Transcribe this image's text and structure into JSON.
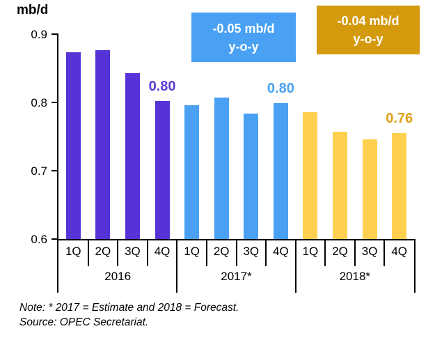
{
  "title": "mb/d",
  "annotations": [
    {
      "line1": "-0.05  mb/d",
      "line2": "y-o-y",
      "bg": "#4aa1f3"
    },
    {
      "line1": "-0.04 mb/d",
      "line2": "y-o-y",
      "bg": "#d49a0e"
    }
  ],
  "note": "Note: * 2017 = Estimate and 2018 = Forecast.",
  "source": "Source: OPEC Secretariat.",
  "chart_data": {
    "type": "bar",
    "title": "mb/d",
    "ylabel": "mb/d",
    "ylim": [
      0.6,
      0.9
    ],
    "yticks": [
      "0.9",
      "0.8",
      "0.7",
      "0.6"
    ],
    "ytick_values": [
      0.9,
      0.8,
      0.7,
      0.6
    ],
    "grid": false,
    "legend": "none",
    "quarter_labels": [
      "1Q",
      "2Q",
      "3Q",
      "4Q"
    ],
    "groups": [
      {
        "year": "2016",
        "color": "#5633d6",
        "values": [
          0.873,
          0.877,
          0.843,
          0.802
        ],
        "last_bar_label": "0.80",
        "label_color": "#5b3bd9"
      },
      {
        "year": "2017*",
        "color": "#4aa1f3",
        "values": [
          0.796,
          0.807,
          0.784,
          0.799
        ],
        "last_bar_label": "0.80",
        "label_color": "#4aa1f3"
      },
      {
        "year": "2018*",
        "color": "#fdd050",
        "values": [
          0.786,
          0.757,
          0.746,
          0.755
        ],
        "last_bar_label": "0.76",
        "label_color": "#dda113"
      }
    ],
    "yoy_annotations": [
      {
        "applies_to": "2017*",
        "text": "-0.05  mb/d y-o-y"
      },
      {
        "applies_to": "2018*",
        "text": "-0.04 mb/d y-o-y"
      }
    ]
  }
}
